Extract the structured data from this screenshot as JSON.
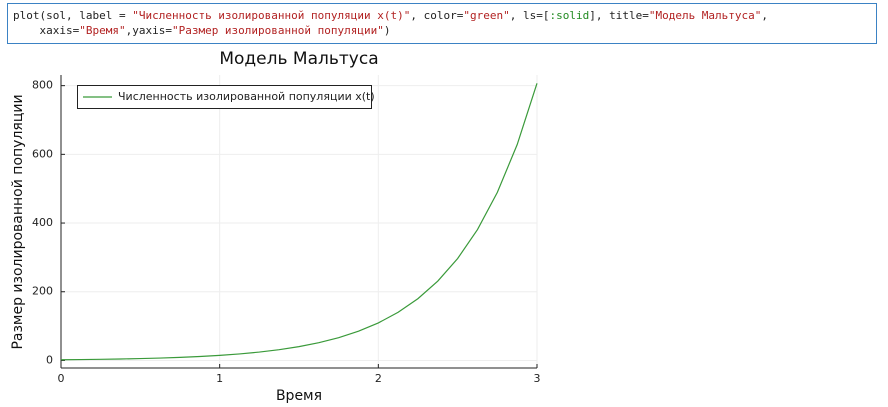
{
  "code": {
    "lines": [
      [
        {
          "text": "plot(sol, label = ",
          "color": "#222222"
        },
        {
          "text": "\"Численность изолированной популяции x(t)\"",
          "color": "#b22222"
        },
        {
          "text": ", color=",
          "color": "#222222"
        },
        {
          "text": "\"green\"",
          "color": "#b22222"
        },
        {
          "text": ", ls=[",
          "color": "#222222"
        },
        {
          "text": ":solid",
          "color": "#228b22"
        },
        {
          "text": "], title=",
          "color": "#222222"
        },
        {
          "text": "\"Модель Мальтуса\"",
          "color": "#b22222"
        },
        {
          "text": ",",
          "color": "#222222"
        }
      ],
      [
        {
          "text": "    xaxis=",
          "color": "#222222"
        },
        {
          "text": "\"Время\"",
          "color": "#b22222"
        },
        {
          "text": ",yaxis=",
          "color": "#222222"
        },
        {
          "text": "\"Размер изолированной популяции\"",
          "color": "#b22222"
        },
        {
          "text": ")",
          "color": "#222222"
        }
      ]
    ]
  },
  "chart_data": {
    "type": "line",
    "title": "Модель Мальтуса",
    "x_label": "Время",
    "y_label": "Размер изолированной популяции",
    "x": [
      0,
      0.125,
      0.25,
      0.375,
      0.5,
      0.625,
      0.75,
      0.875,
      1,
      1.125,
      1.25,
      1.375,
      1.5,
      1.625,
      1.75,
      1.875,
      2,
      2.125,
      2.25,
      2.375,
      2.5,
      2.625,
      2.75,
      2.875,
      3
    ],
    "series": [
      {
        "name": "Численность изолированной популяции x(t)",
        "color": "#3a9a3a",
        "values": [
          2,
          2.568,
          3.297,
          4.234,
          5.437,
          6.981,
          8.963,
          11.51,
          14.78,
          18.97,
          24.36,
          31.28,
          40.17,
          51.58,
          66.23,
          85.04,
          109.2,
          140.2,
          180.0,
          231.2,
          296.8,
          381.1,
          489.3,
          628.3,
          806.9
        ]
      }
    ],
    "xlim": [
      0,
      3
    ],
    "xticks": [
      0,
      1,
      2,
      3
    ],
    "ylim": [
      -22,
      831
    ],
    "yticks": [
      0,
      200,
      400,
      600,
      800
    ],
    "grid": true,
    "legend": "top-left"
  }
}
